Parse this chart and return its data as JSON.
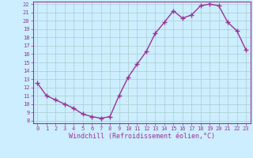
{
  "x": [
    0,
    1,
    2,
    3,
    4,
    5,
    6,
    7,
    8,
    9,
    10,
    11,
    12,
    13,
    14,
    15,
    16,
    17,
    18,
    19,
    20,
    21,
    22,
    23
  ],
  "y": [
    12.5,
    11.0,
    10.5,
    10.0,
    9.5,
    8.8,
    8.5,
    8.3,
    8.5,
    11.0,
    13.2,
    14.8,
    16.3,
    18.5,
    19.8,
    21.2,
    20.3,
    20.7,
    21.8,
    22.0,
    21.8,
    19.8,
    18.8,
    16.5
  ],
  "line_color": "#993399",
  "marker": "+",
  "marker_size": 4.0,
  "bg_color": "#cceeff",
  "grid_color": "#aacccc",
  "xlabel": "Windchill (Refroidissement éolien,°C)",
  "xlabel_color": "#993399",
  "tick_color": "#993399",
  "ylim": [
    8,
    22
  ],
  "xlim": [
    -0.5,
    23.5
  ],
  "yticks": [
    8,
    9,
    10,
    11,
    12,
    13,
    14,
    15,
    16,
    17,
    18,
    19,
    20,
    21,
    22
  ],
  "xticks": [
    0,
    1,
    2,
    3,
    4,
    5,
    6,
    7,
    8,
    9,
    10,
    11,
    12,
    13,
    14,
    15,
    16,
    17,
    18,
    19,
    20,
    21,
    22,
    23
  ],
  "tick_fontsize": 5.0,
  "xlabel_fontsize": 6.0,
  "linewidth": 1.0
}
